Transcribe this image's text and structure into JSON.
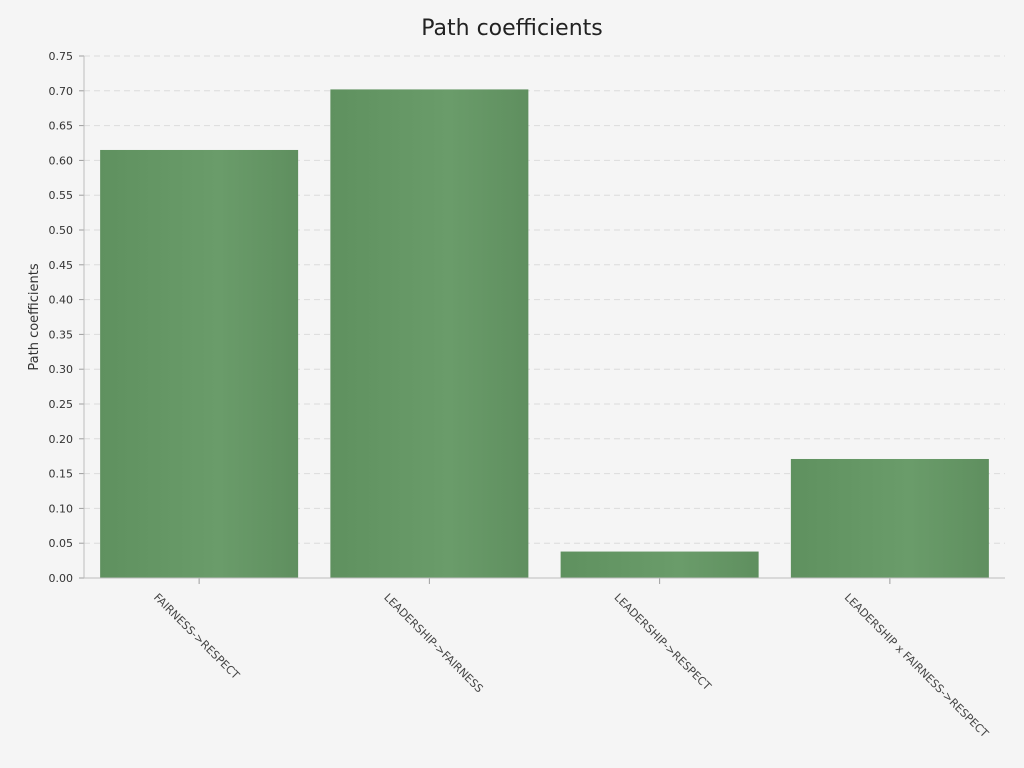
{
  "chart_data": {
    "type": "bar",
    "title": "Path coefficients",
    "xlabel": "",
    "ylabel": "Path coefficients",
    "categories": [
      "FAIRNESS->RESPECT",
      "LEADERSHIP->FAIRNESS",
      "LEADERSHIP->RESPECT",
      "LEADERSHIP x FAIRNESS->RESPECT"
    ],
    "values": [
      0.615,
      0.702,
      0.038,
      0.171
    ],
    "ylim": [
      0,
      0.75
    ],
    "yticks": [
      "0.00",
      "0.05",
      "0.10",
      "0.15",
      "0.20",
      "0.25",
      "0.30",
      "0.35",
      "0.40",
      "0.45",
      "0.50",
      "0.55",
      "0.60",
      "0.65",
      "0.70",
      "0.75"
    ],
    "grid": true,
    "bar_color": "#669966"
  }
}
